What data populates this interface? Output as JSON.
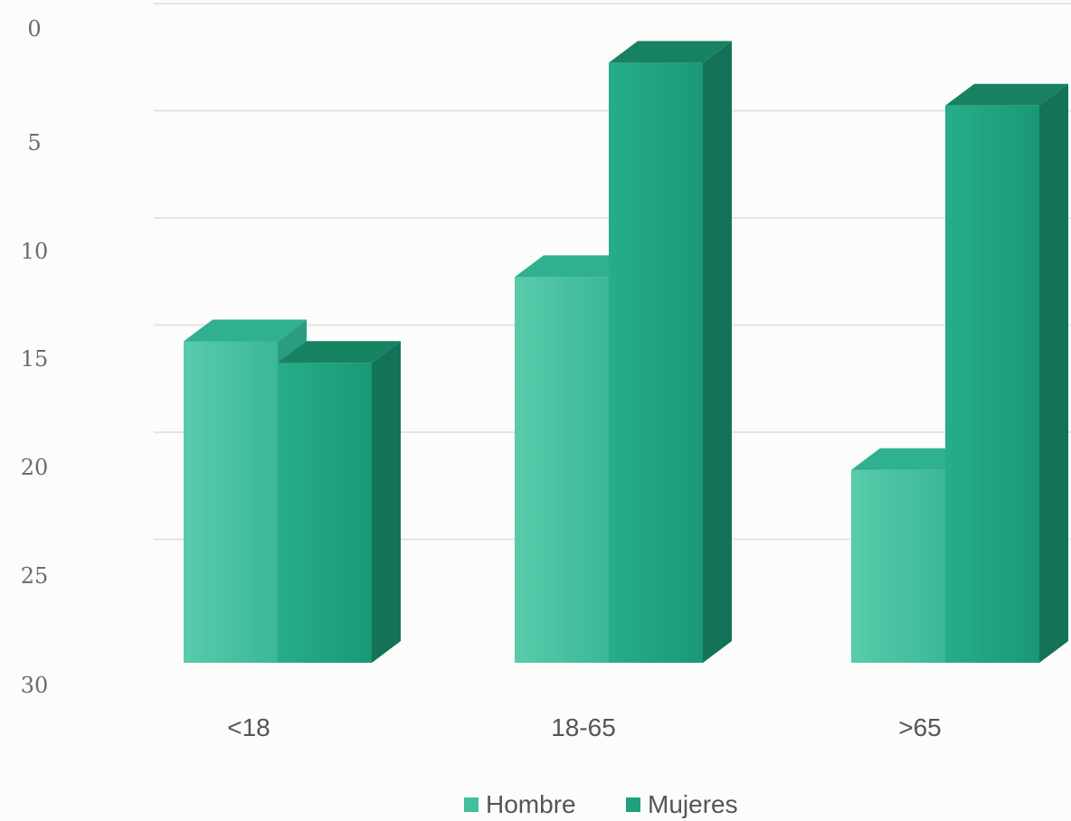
{
  "chart_data": {
    "type": "bar",
    "style": "3d-clustered-column",
    "categories": [
      "<18",
      "18-65",
      ">65"
    ],
    "series": [
      {
        "name": "Hombre",
        "values": [
          15,
          18,
          9
        ],
        "color": "#3fbf9c"
      },
      {
        "name": "Mujeres",
        "values": [
          14,
          28,
          26
        ],
        "color": "#1fa07e"
      }
    ],
    "ylim": [
      0,
      30
    ],
    "yticks": [
      "0",
      "5",
      "10",
      "15",
      "20",
      "25",
      "30"
    ],
    "grid": true,
    "legend_position": "bottom",
    "colors": {
      "side_hombre": "#2a9d82",
      "top_hombre": "#2fb08f",
      "side_mujeres": "#137258",
      "top_mujeres": "#178262",
      "gridline": "#e4e4e4"
    }
  }
}
